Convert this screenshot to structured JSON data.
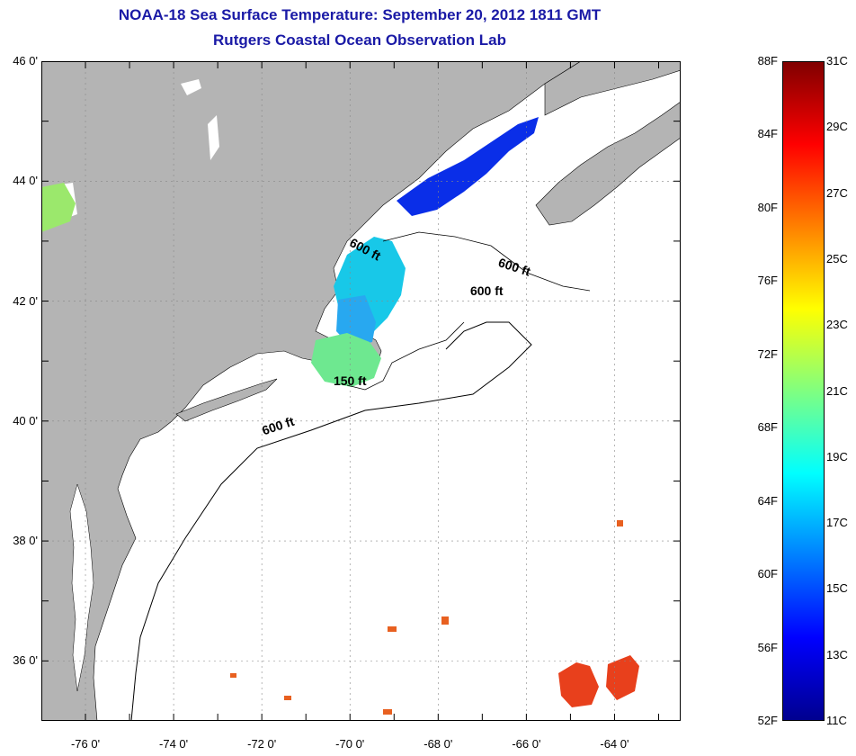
{
  "title": {
    "line1": "NOAA-18 Sea Surface Temperature:  September 20, 2012 1811 GMT",
    "line2": "Rutgers Coastal Ocean Observation Lab"
  },
  "map": {
    "colors": {
      "land": "#b4b4b4",
      "ocean": "#ffffff",
      "title": "#1a1aa6"
    },
    "lat_labels": [
      {
        "lat": 46,
        "text": "46 0'"
      },
      {
        "lat": 44,
        "text": "44 0'"
      },
      {
        "lat": 42,
        "text": "42 0'"
      },
      {
        "lat": 40,
        "text": "40 0'"
      },
      {
        "lat": 38,
        "text": "38 0'"
      },
      {
        "lat": 36,
        "text": "36 0'"
      }
    ],
    "lon_labels": [
      {
        "lon": -76,
        "text": "-76 0'"
      },
      {
        "lon": -74,
        "text": "-74 0'"
      },
      {
        "lon": -72,
        "text": "-72 0'"
      },
      {
        "lon": -70,
        "text": "-70 0'"
      },
      {
        "lon": -68,
        "text": "-68 0'"
      },
      {
        "lon": -66,
        "text": "-66 0'"
      },
      {
        "lon": -64,
        "text": "-64 0'"
      }
    ],
    "contour_labels": [
      {
        "text": "600 ft",
        "lon": -69.7,
        "lat": 42.8,
        "rotate": 28
      },
      {
        "text": "600 ft",
        "lon": -66.3,
        "lat": 42.5,
        "rotate": 18
      },
      {
        "text": "600 ft",
        "lon": -66.9,
        "lat": 42.1,
        "rotate": 0
      },
      {
        "text": "150 ft",
        "lon": -70.0,
        "lat": 40.6,
        "rotate": 0
      },
      {
        "text": "600 ft",
        "lon": -71.6,
        "lat": 39.85,
        "rotate": -18
      }
    ]
  },
  "colorbar": {
    "colors": [
      "#00008f",
      "#0000ff",
      "#0080ff",
      "#00ffff",
      "#80ff80",
      "#ffff00",
      "#ff8000",
      "#ff0000",
      "#800000"
    ],
    "fahrenheit": [
      "88F",
      "84F",
      "80F",
      "76F",
      "72F",
      "68F",
      "64F",
      "60F",
      "56F",
      "52F"
    ],
    "celsius": [
      "31C",
      "29C",
      "27C",
      "25C",
      "23C",
      "21C",
      "19C",
      "17C",
      "15C",
      "13C",
      "11C"
    ]
  }
}
